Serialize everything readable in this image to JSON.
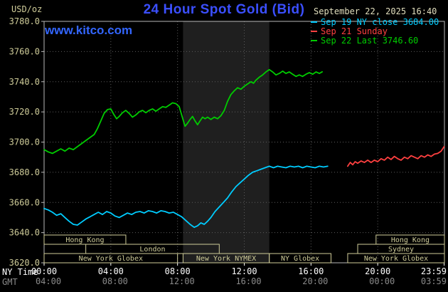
{
  "header": {
    "units": "USD/oz",
    "title": "24 Hour Spot Gold (Bid)",
    "datetime": "September 22, 2025 16:40",
    "watermark": "www.kitco.com"
  },
  "legend": [
    {
      "label": "Sep 19 NY close 3684.00",
      "color": "#00ccff"
    },
    {
      "label": "Sep 21 Sunday",
      "color": "#ff4040"
    },
    {
      "label": "Sep 22 Last 3746.60",
      "color": "#00cc00"
    }
  ],
  "colors": {
    "background": "#000000",
    "plot_border": "#b8b8b8",
    "grid": "#5c5c5c",
    "tan": "#cfcc99",
    "title_blue": "#3b4fff",
    "watermark_blue": "#3366ff",
    "date_text": "#e2dfbe",
    "ny_tick": "#ffffff",
    "gmt_tick": "#8a8a8a",
    "band": "#1f1f1f",
    "cyan": "#00ccff",
    "red": "#ff4040",
    "green": "#00cc00"
  },
  "chart_data": {
    "type": "line",
    "title": "24 Hour Spot Gold (Bid)",
    "ylabel": "USD/oz",
    "ylim": [
      3620,
      3780
    ],
    "ytick_step": 20,
    "xlim_hours": [
      0,
      24
    ],
    "xtick_hours": [
      0,
      4,
      8,
      12,
      16,
      20,
      23.983
    ],
    "x_axis": {
      "ny_label": "NY Time",
      "gmt_label": "GMT",
      "ny_ticks": [
        "00:00",
        "04:00",
        "08:00",
        "12:00",
        "16:00",
        "20:00",
        "23:59"
      ],
      "gmt_ticks": [
        "04:00",
        "08:00",
        "12:00",
        "16:00",
        "20:00",
        "00:00",
        "03:59"
      ]
    },
    "nymex_band_hours": [
      8.33,
      13.5
    ],
    "series": [
      {
        "id": "sep19-ny-close",
        "name": "Sep 19 NY close",
        "close": 3684.0,
        "color": "#00ccff",
        "points": [
          [
            0,
            3656
          ],
          [
            0.25,
            3655
          ],
          [
            0.5,
            3653.5
          ],
          [
            0.75,
            3651.5
          ],
          [
            1,
            3652.5
          ],
          [
            1.25,
            3650
          ],
          [
            1.5,
            3647.5
          ],
          [
            1.75,
            3645.5
          ],
          [
            2,
            3645
          ],
          [
            2.25,
            3647
          ],
          [
            2.5,
            3649
          ],
          [
            2.75,
            3650.5
          ],
          [
            3,
            3652
          ],
          [
            3.25,
            3653.5
          ],
          [
            3.5,
            3652
          ],
          [
            3.75,
            3654
          ],
          [
            4,
            3653
          ],
          [
            4.25,
            3651
          ],
          [
            4.5,
            3650
          ],
          [
            4.75,
            3651.5
          ],
          [
            5,
            3653
          ],
          [
            5.25,
            3652
          ],
          [
            5.5,
            3653.5
          ],
          [
            5.75,
            3654
          ],
          [
            6,
            3653
          ],
          [
            6.25,
            3654.5
          ],
          [
            6.5,
            3654
          ],
          [
            6.75,
            3653
          ],
          [
            7,
            3654.5
          ],
          [
            7.25,
            3654
          ],
          [
            7.5,
            3653
          ],
          [
            7.75,
            3653.5
          ],
          [
            8,
            3652
          ],
          [
            8.25,
            3650.5
          ],
          [
            8.5,
            3648
          ],
          [
            8.75,
            3645.5
          ],
          [
            9,
            3643.5
          ],
          [
            9.2,
            3644.5
          ],
          [
            9.4,
            3646.5
          ],
          [
            9.6,
            3645.5
          ],
          [
            9.8,
            3647.5
          ],
          [
            10,
            3650
          ],
          [
            10.25,
            3654
          ],
          [
            10.5,
            3657
          ],
          [
            10.75,
            3660
          ],
          [
            11,
            3663
          ],
          [
            11.25,
            3667
          ],
          [
            11.5,
            3670.5
          ],
          [
            11.75,
            3673
          ],
          [
            12,
            3675.5
          ],
          [
            12.25,
            3678
          ],
          [
            12.5,
            3680
          ],
          [
            12.75,
            3681
          ],
          [
            13,
            3682
          ],
          [
            13.25,
            3683
          ],
          [
            13.5,
            3684
          ],
          [
            13.75,
            3683
          ],
          [
            14,
            3684
          ],
          [
            14.25,
            3683.5
          ],
          [
            14.5,
            3683
          ],
          [
            14.75,
            3684
          ],
          [
            15,
            3683.5
          ],
          [
            15.25,
            3684
          ],
          [
            15.5,
            3683
          ],
          [
            15.75,
            3684
          ],
          [
            16,
            3683.5
          ],
          [
            16.25,
            3683
          ],
          [
            16.5,
            3684
          ],
          [
            16.75,
            3683.5
          ],
          [
            17,
            3684
          ]
        ]
      },
      {
        "id": "sep21-sunday",
        "name": "Sep 21 Sunday",
        "color": "#ff4040",
        "points": [
          [
            18.2,
            3684
          ],
          [
            18.35,
            3686.5
          ],
          [
            18.5,
            3685
          ],
          [
            18.65,
            3687
          ],
          [
            18.8,
            3686
          ],
          [
            19,
            3687.5
          ],
          [
            19.2,
            3686.5
          ],
          [
            19.4,
            3688
          ],
          [
            19.6,
            3686.5
          ],
          [
            19.8,
            3688
          ],
          [
            20,
            3687
          ],
          [
            20.2,
            3689
          ],
          [
            20.4,
            3688
          ],
          [
            20.6,
            3690
          ],
          [
            20.8,
            3688.5
          ],
          [
            21,
            3690.5
          ],
          [
            21.2,
            3689
          ],
          [
            21.4,
            3688
          ],
          [
            21.6,
            3690
          ],
          [
            21.8,
            3689
          ],
          [
            22,
            3691
          ],
          [
            22.2,
            3690
          ],
          [
            22.4,
            3689
          ],
          [
            22.6,
            3691
          ],
          [
            22.8,
            3690
          ],
          [
            23,
            3691.5
          ],
          [
            23.2,
            3690.5
          ],
          [
            23.4,
            3692
          ],
          [
            23.6,
            3692.5
          ],
          [
            23.8,
            3694
          ],
          [
            23.98,
            3697
          ]
        ]
      },
      {
        "id": "sep22-last",
        "name": "Sep 22 Last",
        "last": 3746.6,
        "color": "#00cc00",
        "points": [
          [
            0,
            3695
          ],
          [
            0.25,
            3693.5
          ],
          [
            0.5,
            3692.5
          ],
          [
            0.75,
            3694
          ],
          [
            1,
            3695.5
          ],
          [
            1.25,
            3694
          ],
          [
            1.5,
            3696
          ],
          [
            1.75,
            3695
          ],
          [
            2,
            3697
          ],
          [
            2.25,
            3699
          ],
          [
            2.5,
            3701
          ],
          [
            2.75,
            3703
          ],
          [
            3,
            3705
          ],
          [
            3.2,
            3709
          ],
          [
            3.4,
            3714
          ],
          [
            3.6,
            3719
          ],
          [
            3.8,
            3721.5
          ],
          [
            4,
            3722
          ],
          [
            4.2,
            3718
          ],
          [
            4.35,
            3715.5
          ],
          [
            4.5,
            3717
          ],
          [
            4.7,
            3719.5
          ],
          [
            4.9,
            3721
          ],
          [
            5.1,
            3719
          ],
          [
            5.3,
            3716.5
          ],
          [
            5.5,
            3718
          ],
          [
            5.7,
            3720
          ],
          [
            5.9,
            3721
          ],
          [
            6.1,
            3719.5
          ],
          [
            6.3,
            3721
          ],
          [
            6.5,
            3722
          ],
          [
            6.7,
            3720.5
          ],
          [
            6.9,
            3722
          ],
          [
            7.1,
            3723.5
          ],
          [
            7.3,
            3723
          ],
          [
            7.5,
            3724.5
          ],
          [
            7.7,
            3726
          ],
          [
            7.9,
            3725.5
          ],
          [
            8.1,
            3723.5
          ],
          [
            8.3,
            3716
          ],
          [
            8.45,
            3710.5
          ],
          [
            8.6,
            3712.5
          ],
          [
            8.75,
            3715
          ],
          [
            8.9,
            3717
          ],
          [
            9.05,
            3714
          ],
          [
            9.2,
            3711.5
          ],
          [
            9.35,
            3714
          ],
          [
            9.5,
            3716.5
          ],
          [
            9.65,
            3715.5
          ],
          [
            9.8,
            3716.5
          ],
          [
            10,
            3715
          ],
          [
            10.2,
            3716.5
          ],
          [
            10.4,
            3715.5
          ],
          [
            10.6,
            3717.5
          ],
          [
            10.8,
            3721
          ],
          [
            11,
            3727
          ],
          [
            11.2,
            3731.5
          ],
          [
            11.4,
            3734
          ],
          [
            11.6,
            3736
          ],
          [
            11.8,
            3735
          ],
          [
            12,
            3737
          ],
          [
            12.2,
            3738.5
          ],
          [
            12.4,
            3740
          ],
          [
            12.55,
            3739
          ],
          [
            12.7,
            3741
          ],
          [
            12.9,
            3743
          ],
          [
            13.1,
            3744.5
          ],
          [
            13.3,
            3746.5
          ],
          [
            13.5,
            3748
          ],
          [
            13.7,
            3746.5
          ],
          [
            13.9,
            3744.5
          ],
          [
            14.1,
            3745.5
          ],
          [
            14.3,
            3747
          ],
          [
            14.5,
            3745.5
          ],
          [
            14.7,
            3746.5
          ],
          [
            14.9,
            3745
          ],
          [
            15.1,
            3743.5
          ],
          [
            15.3,
            3744.5
          ],
          [
            15.5,
            3743.5
          ],
          [
            15.7,
            3745
          ],
          [
            15.9,
            3746
          ],
          [
            16.1,
            3745
          ],
          [
            16.3,
            3746.5
          ],
          [
            16.5,
            3745.5
          ],
          [
            16.67,
            3746.6
          ]
        ]
      }
    ],
    "sessions": [
      {
        "label": "Hong Kong",
        "row": 0,
        "start": 0,
        "end": 4.9
      },
      {
        "label": "Hong Kong",
        "row": 0,
        "start": 19.9,
        "end": 24
      },
      {
        "label": "London",
        "row": 1,
        "start": 2.5,
        "end": 10.5
      },
      {
        "label": "Sydney",
        "row": 1,
        "start": 18.8,
        "end": 24
      },
      {
        "label": "New York Globex",
        "row": 2,
        "start": 0,
        "end": 8
      },
      {
        "label": "New York NYMEX",
        "row": 2,
        "start": 8.33,
        "end": 13.5
      },
      {
        "label": "NY Globex",
        "row": 2,
        "start": 13.5,
        "end": 17.2
      },
      {
        "label": "New York Globex",
        "row": 2,
        "start": 18.2,
        "end": 24
      }
    ]
  }
}
